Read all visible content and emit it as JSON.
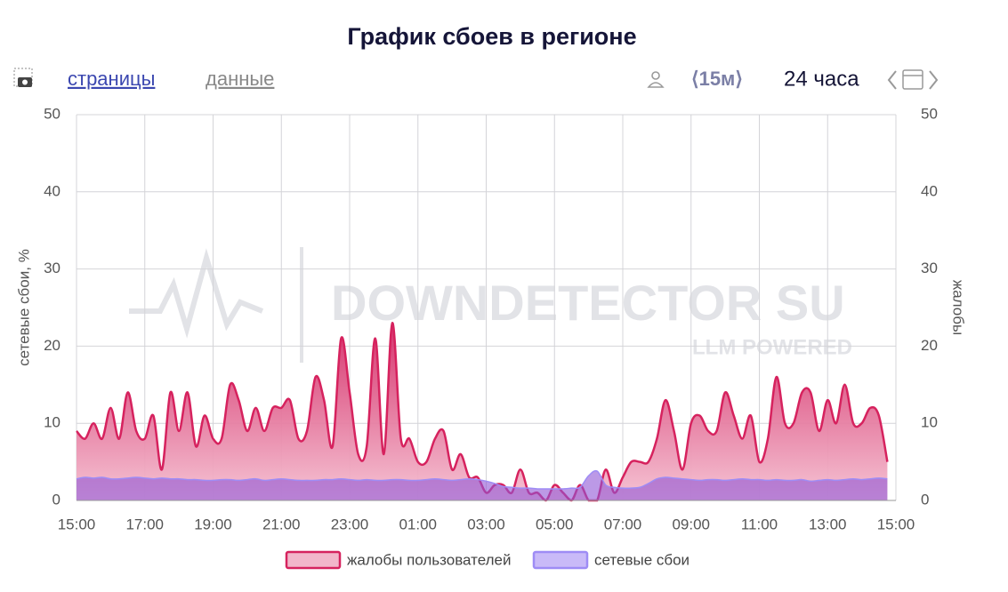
{
  "toolbar": {
    "pages": "страницы",
    "data": "данные",
    "interval": "⟨15м⟩",
    "period": "24 часа"
  },
  "watermark": {
    "title": "DOWNDETECTOR SU",
    "subtitle": "LLM POWERED"
  },
  "chart_data": {
    "type": "area",
    "title": "График сбоев в регионе",
    "y_label": "сетевые сбои, %",
    "y2_label": "жалобы",
    "categories": [
      "15:00",
      "15:15",
      "15:30",
      "15:45",
      "16:00",
      "16:15",
      "16:30",
      "16:45",
      "17:00",
      "17:15",
      "17:30",
      "17:45",
      "18:00",
      "18:15",
      "18:30",
      "18:45",
      "19:00",
      "19:15",
      "19:30",
      "19:45",
      "20:00",
      "20:15",
      "20:30",
      "20:45",
      "21:00",
      "21:15",
      "21:30",
      "21:45",
      "22:00",
      "22:15",
      "22:30",
      "22:45",
      "23:00",
      "23:15",
      "23:30",
      "23:45",
      "00:00",
      "00:15",
      "00:30",
      "00:45",
      "01:00",
      "01:15",
      "01:30",
      "01:45",
      "02:00",
      "02:15",
      "02:30",
      "02:45",
      "03:00",
      "03:15",
      "03:30",
      "03:45",
      "04:00",
      "04:15",
      "04:30",
      "04:45",
      "05:00",
      "05:15",
      "05:30",
      "05:45",
      "06:00",
      "06:15",
      "06:30",
      "06:45",
      "07:00",
      "07:15",
      "07:30",
      "07:45",
      "08:00",
      "08:15",
      "08:30",
      "08:45",
      "09:00",
      "09:15",
      "09:30",
      "09:45",
      "10:00",
      "10:15",
      "10:30",
      "10:45",
      "11:00",
      "11:15",
      "11:30",
      "11:45",
      "12:00",
      "12:15",
      "12:30",
      "12:45",
      "13:00",
      "13:15",
      "13:30",
      "13:45",
      "14:00",
      "14:15",
      "14:30",
      "14:45"
    ],
    "xticks": [
      "15:00",
      "17:00",
      "19:00",
      "21:00",
      "23:00",
      "01:00",
      "03:00",
      "05:00",
      "07:00",
      "09:00",
      "11:00",
      "13:00",
      "15:00"
    ],
    "series": [
      {
        "name": "жалобы пользователей",
        "color": "#d6225e",
        "axis": "y2",
        "values": [
          9,
          8,
          10,
          8,
          12,
          8,
          14,
          9,
          8,
          11,
          4,
          14,
          9,
          14,
          7,
          11,
          8,
          8,
          15,
          13,
          9,
          12,
          9,
          12,
          12,
          13,
          8,
          9,
          16,
          13,
          7,
          21,
          14,
          6,
          7,
          21,
          6,
          23,
          8,
          8,
          5,
          5,
          8,
          9,
          4,
          6,
          3,
          3,
          1,
          2,
          2,
          1,
          4,
          1,
          1,
          0,
          2,
          1,
          0,
          2,
          0,
          0,
          4,
          1,
          3,
          5,
          5,
          5,
          8,
          13,
          9,
          4,
          10,
          11,
          9,
          9,
          14,
          11,
          8,
          11,
          5,
          8,
          16,
          10,
          10,
          14,
          14,
          9,
          13,
          10,
          15,
          10,
          10,
          12,
          11,
          5
        ]
      },
      {
        "name": "сетевые сбои",
        "color": "#9e8cf5",
        "axis": "y",
        "values": [
          2.8,
          3.0,
          2.9,
          3.0,
          2.8,
          2.8,
          2.9,
          3.0,
          2.9,
          2.8,
          2.9,
          2.8,
          2.8,
          2.7,
          2.7,
          2.6,
          2.6,
          2.7,
          2.7,
          2.6,
          2.7,
          2.8,
          2.6,
          2.7,
          2.8,
          2.7,
          2.6,
          2.6,
          2.6,
          2.7,
          2.7,
          2.8,
          2.7,
          2.6,
          2.7,
          2.6,
          2.6,
          2.7,
          2.7,
          2.6,
          2.6,
          2.7,
          2.8,
          2.7,
          2.6,
          2.7,
          2.8,
          2.7,
          2.5,
          2.2,
          1.8,
          1.7,
          1.6,
          1.6,
          1.5,
          1.5,
          1.5,
          1.5,
          1.6,
          1.7,
          3.2,
          3.8,
          2.0,
          1.7,
          1.6,
          1.6,
          1.7,
          2.2,
          2.8,
          3.0,
          2.9,
          2.8,
          2.7,
          2.6,
          2.7,
          2.7,
          2.6,
          2.7,
          2.8,
          2.7,
          2.7,
          2.6,
          2.7,
          2.6,
          2.6,
          2.7,
          2.5,
          2.6,
          2.7,
          2.6,
          2.7,
          2.8,
          2.7,
          2.8,
          2.9,
          2.8
        ]
      }
    ],
    "ylim": [
      0,
      50
    ],
    "yticks": [
      0,
      10,
      20,
      30,
      40,
      50
    ],
    "y2lim": [
      0,
      50
    ],
    "y2ticks": [
      0,
      10,
      20,
      30,
      40,
      50
    ],
    "grid": true
  }
}
